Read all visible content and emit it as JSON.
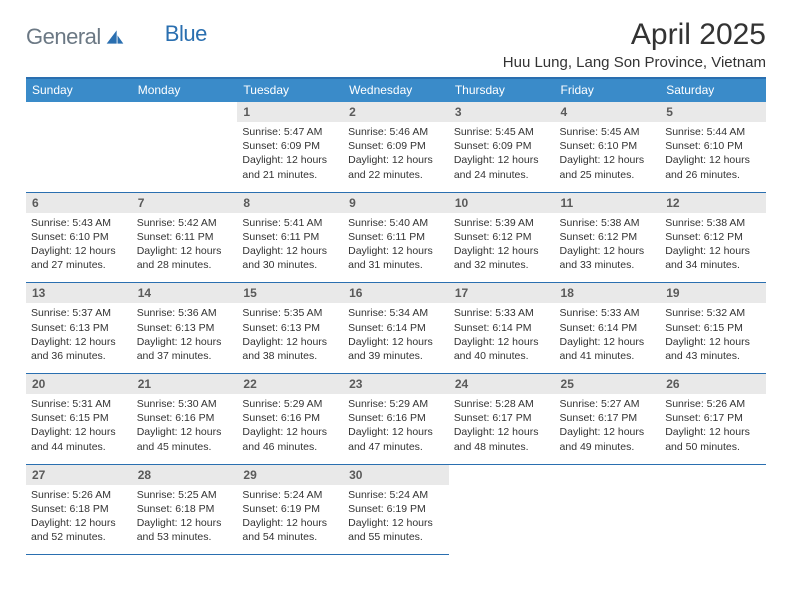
{
  "brand": {
    "textA": "General",
    "textB": "Blue"
  },
  "title": "April 2025",
  "location": "Huu Lung, Lang Son Province, Vietnam",
  "theme": {
    "primary": "#3a8bc9",
    "rule": "#2a6fb0",
    "dayBg": "#e9e9e9",
    "text": "#333333",
    "logoGray": "#6b7884",
    "logoBlue": "#2a6fb0"
  },
  "weekdays": [
    "Sunday",
    "Monday",
    "Tuesday",
    "Wednesday",
    "Thursday",
    "Friday",
    "Saturday"
  ],
  "weeks": [
    [
      null,
      null,
      {
        "n": "1",
        "sr": "5:47 AM",
        "ss": "6:09 PM",
        "dl": "12 hours and 21 minutes."
      },
      {
        "n": "2",
        "sr": "5:46 AM",
        "ss": "6:09 PM",
        "dl": "12 hours and 22 minutes."
      },
      {
        "n": "3",
        "sr": "5:45 AM",
        "ss": "6:09 PM",
        "dl": "12 hours and 24 minutes."
      },
      {
        "n": "4",
        "sr": "5:45 AM",
        "ss": "6:10 PM",
        "dl": "12 hours and 25 minutes."
      },
      {
        "n": "5",
        "sr": "5:44 AM",
        "ss": "6:10 PM",
        "dl": "12 hours and 26 minutes."
      }
    ],
    [
      {
        "n": "6",
        "sr": "5:43 AM",
        "ss": "6:10 PM",
        "dl": "12 hours and 27 minutes."
      },
      {
        "n": "7",
        "sr": "5:42 AM",
        "ss": "6:11 PM",
        "dl": "12 hours and 28 minutes."
      },
      {
        "n": "8",
        "sr": "5:41 AM",
        "ss": "6:11 PM",
        "dl": "12 hours and 30 minutes."
      },
      {
        "n": "9",
        "sr": "5:40 AM",
        "ss": "6:11 PM",
        "dl": "12 hours and 31 minutes."
      },
      {
        "n": "10",
        "sr": "5:39 AM",
        "ss": "6:12 PM",
        "dl": "12 hours and 32 minutes."
      },
      {
        "n": "11",
        "sr": "5:38 AM",
        "ss": "6:12 PM",
        "dl": "12 hours and 33 minutes."
      },
      {
        "n": "12",
        "sr": "5:38 AM",
        "ss": "6:12 PM",
        "dl": "12 hours and 34 minutes."
      }
    ],
    [
      {
        "n": "13",
        "sr": "5:37 AM",
        "ss": "6:13 PM",
        "dl": "12 hours and 36 minutes."
      },
      {
        "n": "14",
        "sr": "5:36 AM",
        "ss": "6:13 PM",
        "dl": "12 hours and 37 minutes."
      },
      {
        "n": "15",
        "sr": "5:35 AM",
        "ss": "6:13 PM",
        "dl": "12 hours and 38 minutes."
      },
      {
        "n": "16",
        "sr": "5:34 AM",
        "ss": "6:14 PM",
        "dl": "12 hours and 39 minutes."
      },
      {
        "n": "17",
        "sr": "5:33 AM",
        "ss": "6:14 PM",
        "dl": "12 hours and 40 minutes."
      },
      {
        "n": "18",
        "sr": "5:33 AM",
        "ss": "6:14 PM",
        "dl": "12 hours and 41 minutes."
      },
      {
        "n": "19",
        "sr": "5:32 AM",
        "ss": "6:15 PM",
        "dl": "12 hours and 43 minutes."
      }
    ],
    [
      {
        "n": "20",
        "sr": "5:31 AM",
        "ss": "6:15 PM",
        "dl": "12 hours and 44 minutes."
      },
      {
        "n": "21",
        "sr": "5:30 AM",
        "ss": "6:16 PM",
        "dl": "12 hours and 45 minutes."
      },
      {
        "n": "22",
        "sr": "5:29 AM",
        "ss": "6:16 PM",
        "dl": "12 hours and 46 minutes."
      },
      {
        "n": "23",
        "sr": "5:29 AM",
        "ss": "6:16 PM",
        "dl": "12 hours and 47 minutes."
      },
      {
        "n": "24",
        "sr": "5:28 AM",
        "ss": "6:17 PM",
        "dl": "12 hours and 48 minutes."
      },
      {
        "n": "25",
        "sr": "5:27 AM",
        "ss": "6:17 PM",
        "dl": "12 hours and 49 minutes."
      },
      {
        "n": "26",
        "sr": "5:26 AM",
        "ss": "6:17 PM",
        "dl": "12 hours and 50 minutes."
      }
    ],
    [
      {
        "n": "27",
        "sr": "5:26 AM",
        "ss": "6:18 PM",
        "dl": "12 hours and 52 minutes."
      },
      {
        "n": "28",
        "sr": "5:25 AM",
        "ss": "6:18 PM",
        "dl": "12 hours and 53 minutes."
      },
      {
        "n": "29",
        "sr": "5:24 AM",
        "ss": "6:19 PM",
        "dl": "12 hours and 54 minutes."
      },
      {
        "n": "30",
        "sr": "5:24 AM",
        "ss": "6:19 PM",
        "dl": "12 hours and 55 minutes."
      },
      null,
      null,
      null
    ]
  ],
  "labels": {
    "sunrise": "Sunrise: ",
    "sunset": "Sunset: ",
    "daylight": "Daylight: "
  }
}
